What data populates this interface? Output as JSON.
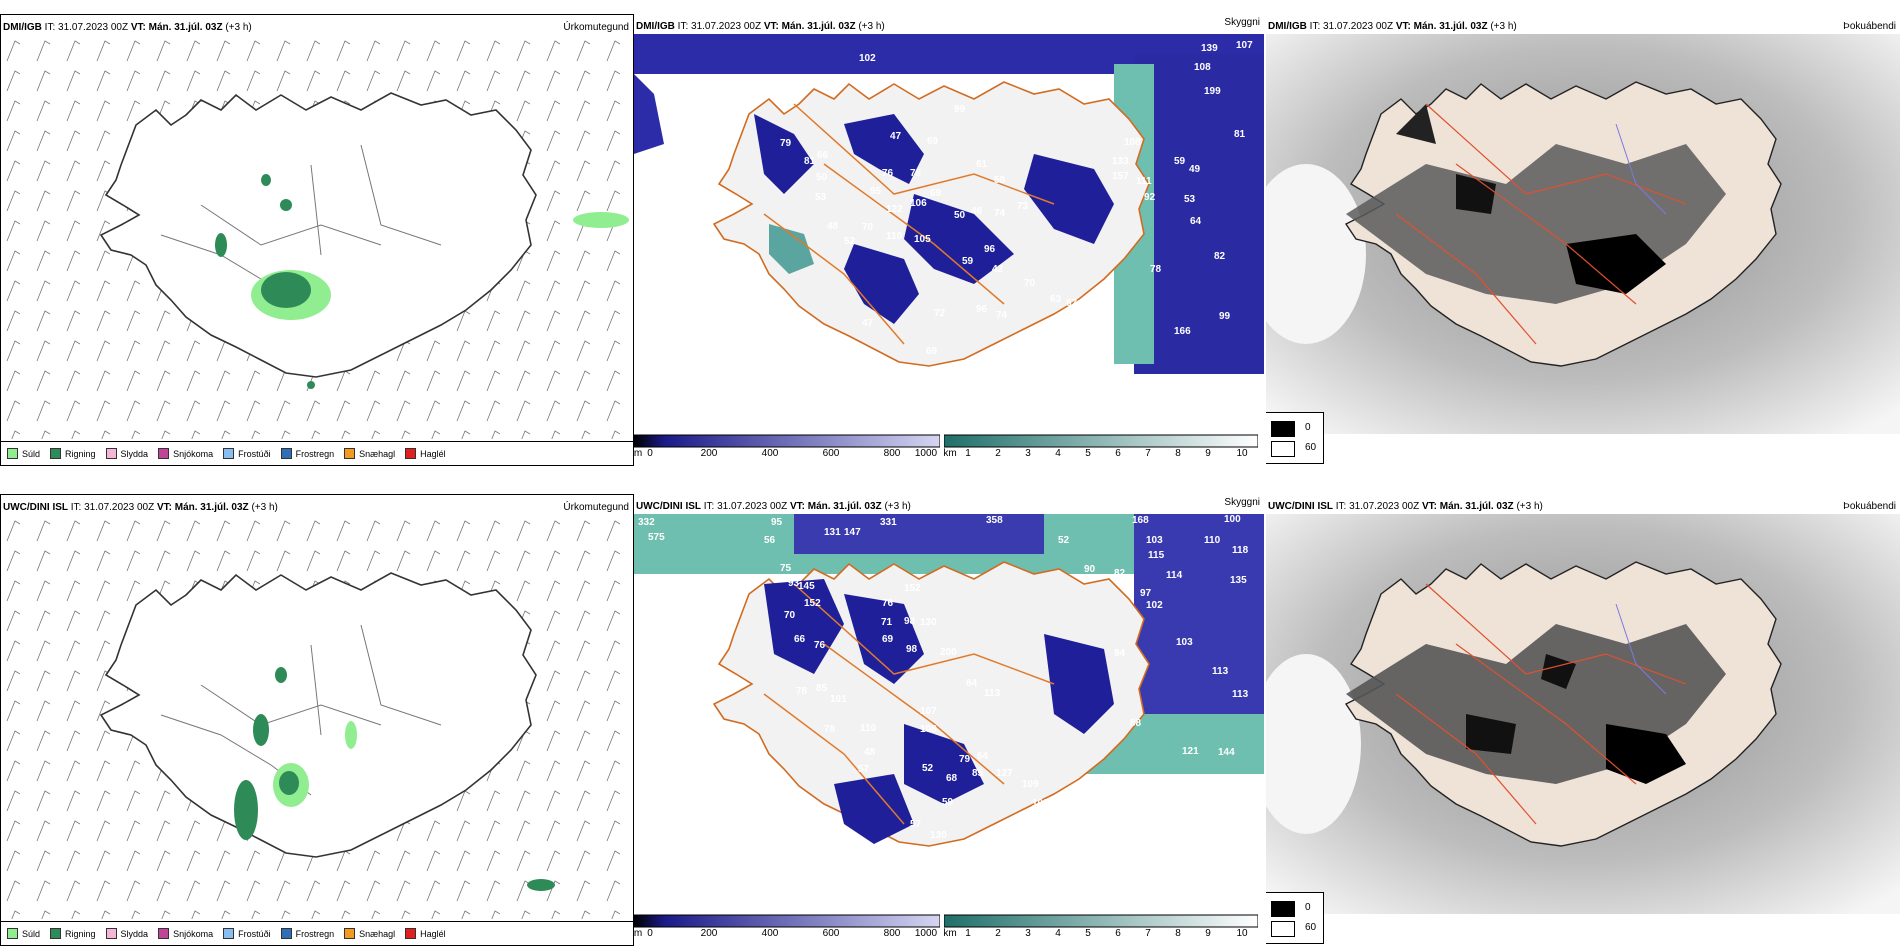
{
  "top": {
    "precip": {
      "source": "DMI/IGB",
      "it": "IT: 31.07.2023 00Z",
      "vt": "VT: Mán. 31.júl. 03Z",
      "offset": "(+3 h)",
      "title": "Úrkomutegund"
    },
    "vis": {
      "source": "DMI/IGB",
      "it": "IT: 31.07.2023 00Z",
      "vt": "VT: Mán. 31.júl. 03Z",
      "offset": "(+3 h)",
      "title": "Skyggni",
      "labels": [
        "102",
        "56",
        "45",
        "139",
        "107",
        "108",
        "199",
        "81",
        "100",
        "47",
        "69",
        "99",
        "61",
        "58",
        "73",
        "79",
        "66",
        "81",
        "50",
        "53",
        "48",
        "70",
        "52",
        "76",
        "78",
        "122",
        "106",
        "95",
        "110",
        "105",
        "69",
        "50",
        "46",
        "74",
        "96",
        "59",
        "42",
        "70",
        "63",
        "67",
        "61",
        "72",
        "96",
        "74",
        "62",
        "57",
        "47",
        "69",
        "59",
        "67",
        "66",
        "78",
        "82",
        "99",
        "166",
        "108",
        "133",
        "157",
        "111",
        "92",
        "59",
        "49",
        "53",
        "64"
      ]
    },
    "cloud": {
      "source": "DMI/IGB",
      "it": "IT: 31.07.2023 00Z",
      "vt": "VT: Mán. 31.júl. 03Z",
      "offset": "(+3 h)",
      "title": "Þokuábendi"
    }
  },
  "bottom": {
    "precip": {
      "source": "UWC/DINI ISL",
      "it": "IT: 31.07.2023 00Z",
      "vt": "VT: Mán. 31.júl. 03Z",
      "offset": "(+3 h)",
      "title": "Úrkomutegund"
    },
    "vis": {
      "source": "UWC/DINI ISL",
      "it": "IT: 31.07.2023 00Z",
      "vt": "VT: Mán. 31.júl. 03Z",
      "offset": "(+3 h)",
      "title": "Skyggni",
      "labels": [
        "332",
        "575",
        "95",
        "56",
        "131",
        "147",
        "331",
        "358",
        "52",
        "168",
        "100",
        "103",
        "110",
        "115",
        "118",
        "114",
        "135",
        "90",
        "82",
        "97",
        "102",
        "75",
        "93",
        "145",
        "152",
        "76",
        "152",
        "70",
        "71",
        "98",
        "130",
        "66",
        "69",
        "98",
        "76",
        "78",
        "85",
        "101",
        "84",
        "113",
        "78",
        "110",
        "200",
        "107",
        "108",
        "94",
        "103",
        "113",
        "113",
        "88",
        "144",
        "48",
        "57",
        "52",
        "79",
        "64",
        "68",
        "85",
        "127",
        "109",
        "103",
        "191",
        "210",
        "121",
        "57",
        "130",
        "59",
        "80",
        "97",
        "77",
        "77"
      ]
    },
    "cloud": {
      "source": "UWC/DINI ISL",
      "it": "IT: 31.07.2023 00Z",
      "vt": "VT: Mán. 31.júl. 03Z",
      "offset": "(+3 h)",
      "title": "Þokuábendi"
    }
  },
  "precip_legend": [
    {
      "label": "Súld",
      "color": "#90ee90"
    },
    {
      "label": "Rigning",
      "color": "#2e8b57"
    },
    {
      "label": "Slydda",
      "color": "#f4b6d6"
    },
    {
      "label": "Snjókoma",
      "color": "#c0449a"
    },
    {
      "label": "Frostúði",
      "color": "#87bdf0"
    },
    {
      "label": "Frostregn",
      "color": "#2f6fb5"
    },
    {
      "label": "Snæhagl",
      "color": "#f39a20"
    },
    {
      "label": "Haglél",
      "color": "#e02020"
    }
  ],
  "vis_colorbar": {
    "m_unit": "m",
    "m_ticks": [
      "0",
      "200",
      "400",
      "600",
      "800",
      "1000"
    ],
    "km_unit": "km",
    "km_ticks": [
      "1",
      "2",
      "3",
      "4",
      "5",
      "6",
      "7",
      "8",
      "9",
      "10"
    ]
  },
  "fog_legend": {
    "low": "0",
    "high": "60"
  }
}
